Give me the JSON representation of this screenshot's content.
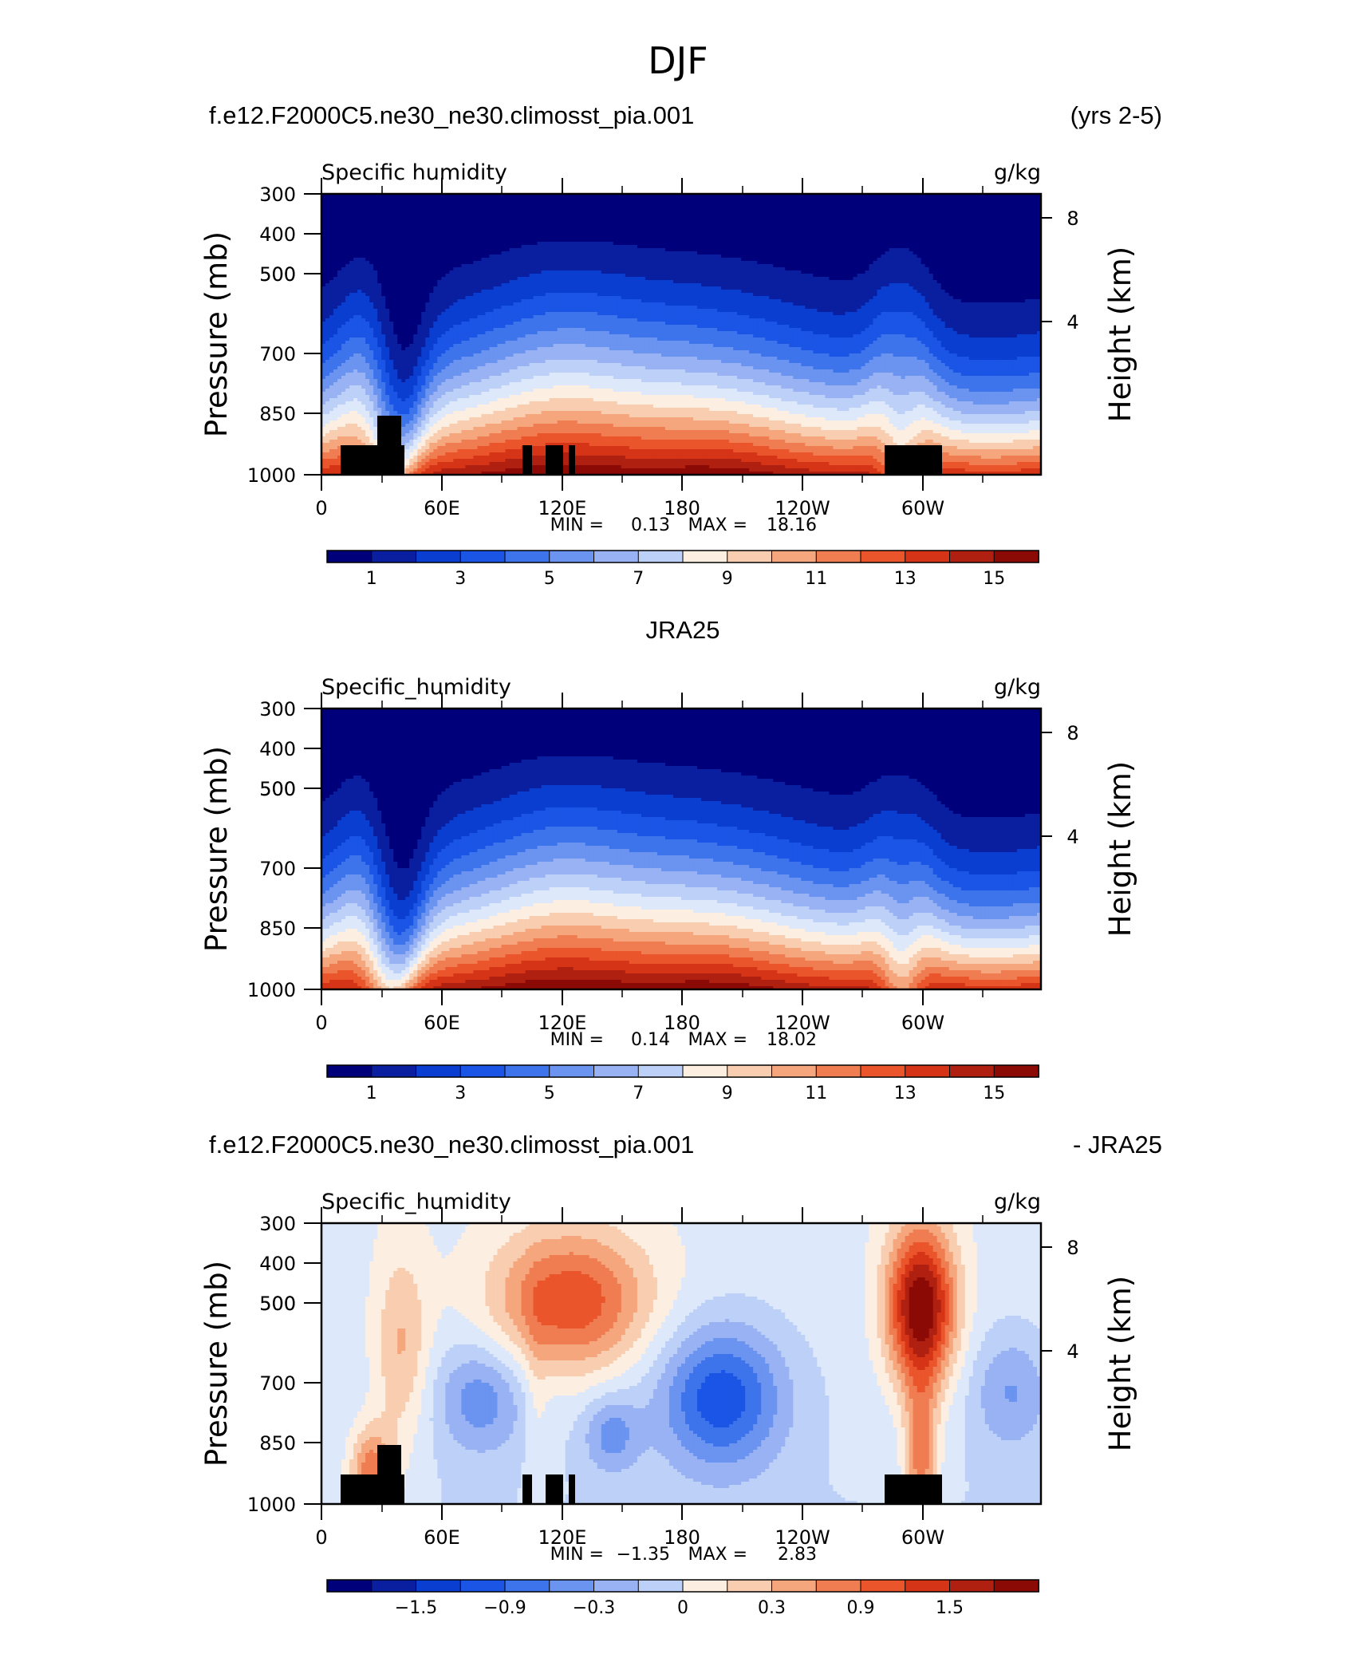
{
  "figure": {
    "title": "DJF"
  },
  "chart_data": [
    {
      "type": "heatmap",
      "panel_title_left": "f.e12.F2000C5.ne30_ne30.climosst_pia.001",
      "panel_title_right": "(yrs 2-5)",
      "variable_label": "Specific humidity",
      "units_label": "g/kg",
      "ylabel": "Pressure (mb)",
      "ylabel_right": "Height (km)",
      "pressure_ticks": [
        "300",
        "400",
        "500",
        "500",
        "700",
        "850",
        "1000"
      ],
      "height_ticks": [
        "8",
        "4"
      ],
      "x_ticks": [
        "0",
        "60E",
        "120E",
        "180",
        "120W",
        "60W"
      ],
      "stats": {
        "min_label": "MIN =",
        "min": "0.13",
        "max_label": "MAX =",
        "max": "18.16"
      },
      "colorbar": {
        "labels": [
          "1",
          "3",
          "5",
          "7",
          "9",
          "11",
          "13",
          "15"
        ]
      },
      "value_range": [
        0.13,
        18.16
      ],
      "topography": "black blocks near 10–40E, 100–125E and 280–310E (lowest levels)"
    },
    {
      "type": "heatmap",
      "panel_title_center": "JRA25",
      "variable_label": "Specific_humidity",
      "units_label": "g/kg",
      "ylabel": "Pressure (mb)",
      "ylabel_right": "Height (km)",
      "pressure_ticks": [
        "300",
        "400",
        "500",
        "500",
        "700",
        "850",
        "1000"
      ],
      "height_ticks": [
        "8",
        "4"
      ],
      "x_ticks": [
        "0",
        "60E",
        "120E",
        "180",
        "120W",
        "60W"
      ],
      "stats": {
        "min_label": "MIN =",
        "min": "0.14",
        "max_label": "MAX =",
        "max": "18.02"
      },
      "colorbar": {
        "labels": [
          "1",
          "3",
          "5",
          "7",
          "9",
          "11",
          "13",
          "15"
        ]
      },
      "value_range": [
        0.14,
        18.02
      ]
    },
    {
      "type": "heatmap",
      "panel_title_left": "f.e12.F2000C5.ne30_ne30.climosst_pia.001",
      "panel_title_right": "- JRA25",
      "variable_label": "Specific_humidity",
      "units_label": "g/kg",
      "ylabel": "Pressure (mb)",
      "ylabel_right": "Height (km)",
      "pressure_ticks": [
        "300",
        "400",
        "500",
        "500",
        "700",
        "850",
        "1000"
      ],
      "height_ticks": [
        "8",
        "4"
      ],
      "x_ticks": [
        "0",
        "60E",
        "120E",
        "180",
        "120W",
        "60W"
      ],
      "stats": {
        "min_label": "MIN =",
        "min": "−1.35",
        "max_label": "MAX =",
        "max": "2.83"
      },
      "colorbar": {
        "labels": [
          "−1.5",
          "−0.9",
          "−0.3",
          "0",
          "0.3",
          "0.9",
          "1.5"
        ]
      },
      "value_range": [
        -1.35,
        2.83
      ],
      "topography": "black blocks near 10–40E, 100–125E and 280–310E (lowest levels)"
    }
  ],
  "colors": {
    "palette": [
      "#00007a",
      "#0a1fa0",
      "#0a3ed0",
      "#1b55e6",
      "#3d74ec",
      "#6b93f0",
      "#98b2f4",
      "#bdd0f8",
      "#dde9fb",
      "#fdeee2",
      "#f9cdb0",
      "#f5a67c",
      "#f07c52",
      "#ea552c",
      "#d53516",
      "#b02010",
      "#8c0a06"
    ],
    "topography": "#000000"
  }
}
